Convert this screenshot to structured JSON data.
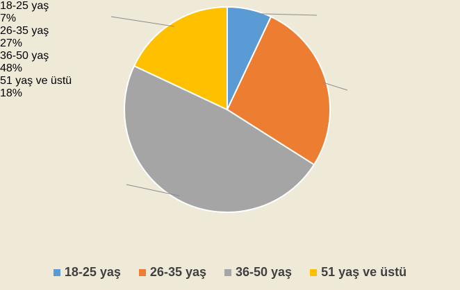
{
  "chart_data": {
    "type": "pie",
    "categories": [
      "18-25 yaş",
      "26-35 yaş",
      "36-50 yaş",
      "51 yaş ve üstü"
    ],
    "values": [
      7,
      27,
      48,
      18
    ],
    "value_labels": [
      "7%",
      "27%",
      "48%",
      "18%"
    ],
    "colors": [
      "#5b9bd5",
      "#ed7d31",
      "#a5a5a5",
      "#ffc000"
    ],
    "legend": "bottom"
  }
}
